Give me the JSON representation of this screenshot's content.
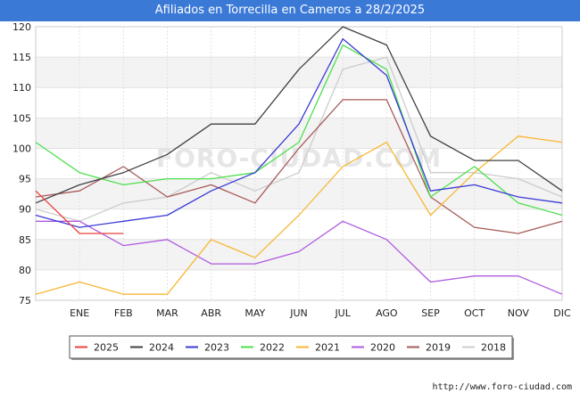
{
  "title": "Afiliados en Torrecilla en Cameros a 28/2/2025",
  "credit": "http://www.foro-ciudad.com",
  "watermark": "FORO-CIUDAD.COM",
  "chart_data": {
    "type": "line",
    "title": "Afiliados en Torrecilla en Cameros a 28/2/2025",
    "xlabel": "",
    "ylabel": "",
    "categories": [
      "",
      "ENE",
      "FEB",
      "MAR",
      "ABR",
      "MAY",
      "JUN",
      "JUL",
      "AGO",
      "SEP",
      "OCT",
      "NOV",
      "DIC"
    ],
    "ylim": [
      75,
      120
    ],
    "yticks": [
      75,
      80,
      85,
      90,
      95,
      100,
      105,
      110,
      115,
      120
    ],
    "grid": true,
    "legend_position": "bottom",
    "series": [
      {
        "name": "2025",
        "color": "#e8423b",
        "values": [
          93,
          86,
          86,
          null,
          null,
          null,
          null,
          null,
          null,
          null,
          null,
          null,
          null
        ]
      },
      {
        "name": "2024",
        "color": "#404040",
        "values": [
          91,
          94,
          96,
          99,
          104,
          104,
          113,
          120,
          117,
          102,
          98,
          98,
          93
        ]
      },
      {
        "name": "2023",
        "color": "#3a3ad6",
        "values": [
          89,
          87,
          88,
          89,
          93,
          96,
          104,
          118,
          112,
          93,
          94,
          92,
          91
        ]
      },
      {
        "name": "2022",
        "color": "#4ee04e",
        "values": [
          101,
          96,
          94,
          95,
          95,
          96,
          101,
          117,
          113,
          92,
          97,
          91,
          89
        ]
      },
      {
        "name": "2021",
        "color": "#f7b733",
        "values": [
          76,
          78,
          76,
          76,
          85,
          82,
          89,
          97,
          101,
          89,
          96,
          102,
          101
        ]
      },
      {
        "name": "2020",
        "color": "#b05ae0",
        "values": [
          88,
          88,
          84,
          85,
          81,
          81,
          83,
          88,
          85,
          78,
          79,
          79,
          76
        ]
      },
      {
        "name": "2019",
        "color": "#a85a5a",
        "values": [
          92,
          93,
          97,
          92,
          94,
          91,
          100,
          108,
          108,
          92,
          87,
          86,
          88
        ]
      },
      {
        "name": "2018",
        "color": "#cccccc",
        "values": [
          90,
          88,
          91,
          92,
          96,
          93,
          96,
          113,
          115,
          96,
          96,
          95,
          92
        ]
      }
    ]
  }
}
